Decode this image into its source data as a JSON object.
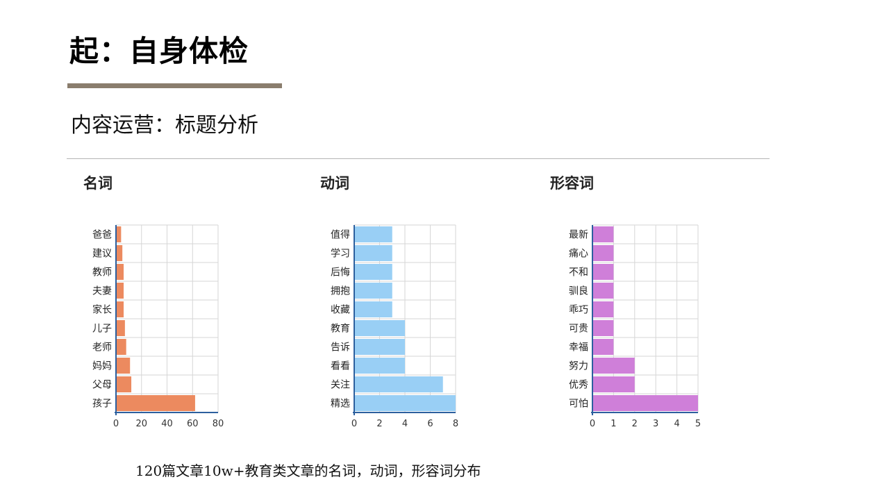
{
  "page": {
    "title": "起：自身体检",
    "subtitle": "内容运营：标题分析",
    "caption": "120篇文章10w+教育类文章的名词，动词，形容词分布",
    "accent_bar_color": "#8a7d6d"
  },
  "chart_data": [
    {
      "type": "bar",
      "orientation": "horizontal",
      "title": "名词",
      "color": "#ec8a5f",
      "categories": [
        "爸爸",
        "建议",
        "教师",
        "夫妻",
        "家长",
        "儿子",
        "老师",
        "妈妈",
        "父母",
        "孩子"
      ],
      "values": [
        4,
        5,
        6,
        6,
        6,
        7,
        8,
        11,
        12,
        62
      ],
      "xlim": [
        0,
        80
      ],
      "xticks": [
        "0",
        "20",
        "40",
        "60",
        "80"
      ],
      "grid": true
    },
    {
      "type": "bar",
      "orientation": "horizontal",
      "title": "动词",
      "color": "#99cff5",
      "categories": [
        "值得",
        "学习",
        "后悔",
        "拥抱",
        "收藏",
        "教育",
        "告诉",
        "看看",
        "关注",
        "精选"
      ],
      "values": [
        3,
        3,
        3,
        3,
        3,
        4,
        4,
        4,
        7,
        8
      ],
      "xlim": [
        0,
        8
      ],
      "xticks": [
        "0",
        "2",
        "4",
        "6",
        "8"
      ],
      "grid": true
    },
    {
      "type": "bar",
      "orientation": "horizontal",
      "title": "形容词",
      "color": "#cf7fd9",
      "categories": [
        "最新",
        "痛心",
        "不和",
        "驯良",
        "乖巧",
        "可贵",
        "幸福",
        "努力",
        "优秀",
        "可怕"
      ],
      "values": [
        1,
        1,
        1,
        1,
        1,
        1,
        1,
        2,
        2,
        5
      ],
      "xlim": [
        0,
        5
      ],
      "xticks": [
        "0",
        "1",
        "2",
        "3",
        "4",
        "5"
      ],
      "grid": true
    }
  ]
}
